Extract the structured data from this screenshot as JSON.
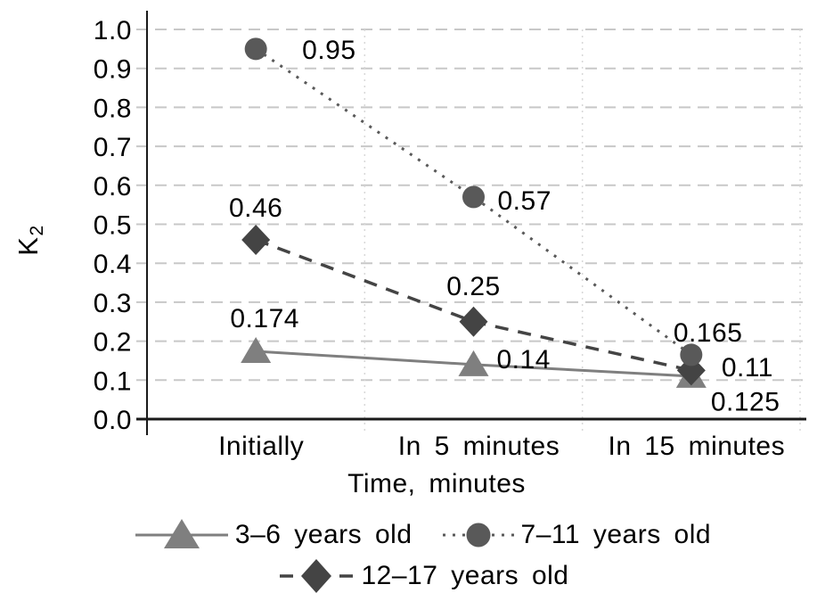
{
  "chart_data": {
    "type": "line",
    "title": "",
    "xlabel": "Time, minutes",
    "ylabel": "K",
    "ylabel_subscript": "2",
    "categories": [
      "Initially",
      "In 5 minutes",
      "In 15 minutes"
    ],
    "ylim": [
      0.0,
      1.0
    ],
    "ytick_step": 0.1,
    "yticks": [
      "1.0",
      "0.9",
      "0.8",
      "0.7",
      "0.6",
      "0.5",
      "0.4",
      "0.3",
      "0.2",
      "0.1",
      "0.0"
    ],
    "grid": "horizontal dashed gridlines on, faint dotted category separators",
    "legend_position": "bottom",
    "series": [
      {
        "name": "3–6 years old",
        "marker": "triangle",
        "line_style": "solid",
        "color": "#7f7f7f",
        "values": [
          0.174,
          0.14,
          0.11
        ],
        "labels": [
          {
            "text": "0.174",
            "anchor": "middle",
            "dx": 10,
            "dy": -27
          },
          {
            "text": "0.14",
            "anchor": "start",
            "dx": 26,
            "dy": 4
          },
          {
            "text": "0.11",
            "anchor": "start",
            "dx": 34,
            "dy": 0
          }
        ]
      },
      {
        "name": "7–11 years old",
        "marker": "circle",
        "line_style": "dotted",
        "color": "#595959",
        "values": [
          0.95,
          0.57,
          0.165
        ],
        "labels": [
          {
            "text": "0.95",
            "anchor": "start",
            "dx": 52,
            "dy": 11
          },
          {
            "text": "0.57",
            "anchor": "start",
            "dx": 27,
            "dy": 14
          },
          {
            "text": "0.165",
            "anchor": "start",
            "dx": -20,
            "dy": -15
          }
        ]
      },
      {
        "name": "12–17 years old",
        "marker": "diamond",
        "line_style": "dashed",
        "color": "#444444",
        "values": [
          0.46,
          0.25,
          0.125
        ],
        "labels": [
          {
            "text": "0.46",
            "anchor": "middle",
            "dx": 0,
            "dy": -26
          },
          {
            "text": "0.25",
            "anchor": "middle",
            "dx": 0,
            "dy": -30
          },
          {
            "text": "0.125",
            "anchor": "start",
            "dx": 22,
            "dy": 45
          }
        ]
      }
    ],
    "colors": {
      "gridline": "#c8c8c8",
      "category_separator": "#d8d8d8",
      "axis": "#1a1a1a",
      "text": "#000000",
      "background": "#ffffff"
    }
  }
}
